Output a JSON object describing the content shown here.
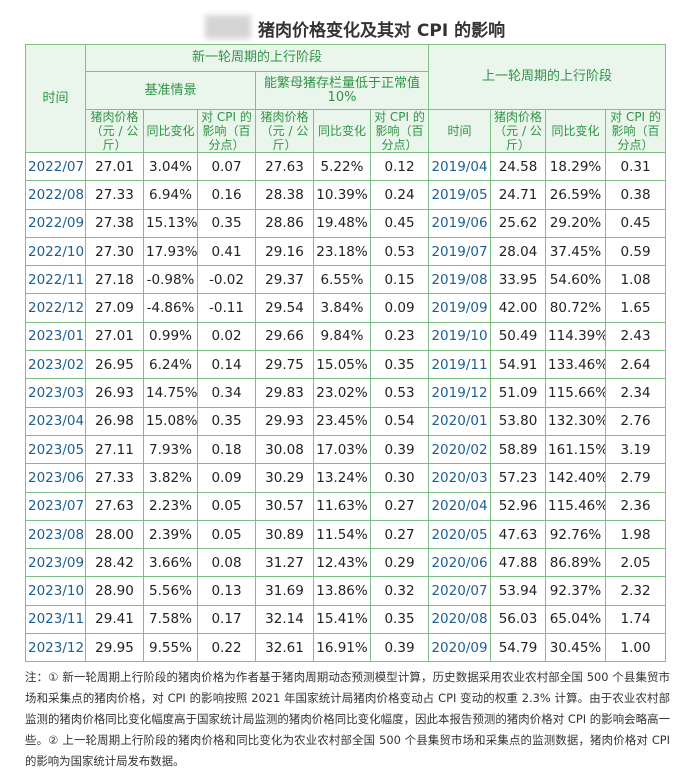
{
  "title": "猪肉价格变化及其对 CPI 的影响",
  "table": {
    "header": {
      "time": "时间",
      "new_cycle": "新一轮周期的上行阶段",
      "old_cycle": "上一轮周期的上行阶段",
      "baseline": "基准情景",
      "low_sow": "能繁母猪存栏量低于正常值 10%",
      "columns": [
        "猪肉价格（元 / 公斤）",
        "同比变化",
        "对 CPI 的影响（百分点）",
        "猪肉价格（元 / 公斤）",
        "同比变化",
        "对 CPI 的影响（百分点）",
        "时间",
        "猪肉价格（元 / 公斤）",
        "同比变化",
        "对 CPI 的影响（百分点）"
      ]
    },
    "rows": [
      [
        "2022/07",
        "27.01",
        "3.04%",
        "0.07",
        "27.63",
        "5.22%",
        "0.12",
        "2019/04",
        "24.58",
        "18.29%",
        "0.31"
      ],
      [
        "2022/08",
        "27.33",
        "6.94%",
        "0.16",
        "28.38",
        "10.39%",
        "0.24",
        "2019/05",
        "24.71",
        "26.59%",
        "0.38"
      ],
      [
        "2022/09",
        "27.38",
        "15.13%",
        "0.35",
        "28.86",
        "19.48%",
        "0.45",
        "2019/06",
        "25.62",
        "29.20%",
        "0.45"
      ],
      [
        "2022/10",
        "27.30",
        "17.93%",
        "0.41",
        "29.16",
        "23.18%",
        "0.53",
        "2019/07",
        "28.04",
        "37.45%",
        "0.59"
      ],
      [
        "2022/11",
        "27.18",
        "-0.98%",
        "-0.02",
        "29.37",
        "6.55%",
        "0.15",
        "2019/08",
        "33.95",
        "54.60%",
        "1.08"
      ],
      [
        "2022/12",
        "27.09",
        "-4.86%",
        "-0.11",
        "29.54",
        "3.84%",
        "0.09",
        "2019/09",
        "42.00",
        "80.72%",
        "1.65"
      ],
      [
        "2023/01",
        "27.01",
        "0.99%",
        "0.02",
        "29.66",
        "9.84%",
        "0.23",
        "2019/10",
        "50.49",
        "114.39%",
        "2.43"
      ],
      [
        "2023/02",
        "26.95",
        "6.24%",
        "0.14",
        "29.75",
        "15.05%",
        "0.35",
        "2019/11",
        "54.91",
        "133.46%",
        "2.64"
      ],
      [
        "2023/03",
        "26.93",
        "14.75%",
        "0.34",
        "29.83",
        "23.02%",
        "0.53",
        "2019/12",
        "51.09",
        "115.66%",
        "2.34"
      ],
      [
        "2023/04",
        "26.98",
        "15.08%",
        "0.35",
        "29.93",
        "23.45%",
        "0.54",
        "2020/01",
        "53.80",
        "132.30%",
        "2.76"
      ],
      [
        "2023/05",
        "27.11",
        "7.93%",
        "0.18",
        "30.08",
        "17.03%",
        "0.39",
        "2020/02",
        "58.89",
        "161.15%",
        "3.19"
      ],
      [
        "2023/06",
        "27.33",
        "3.82%",
        "0.09",
        "30.29",
        "13.24%",
        "0.30",
        "2020/03",
        "57.23",
        "142.40%",
        "2.79"
      ],
      [
        "2023/07",
        "27.63",
        "2.23%",
        "0.05",
        "30.57",
        "11.63%",
        "0.27",
        "2020/04",
        "52.96",
        "115.46%",
        "2.36"
      ],
      [
        "2023/08",
        "28.00",
        "2.39%",
        "0.05",
        "30.89",
        "11.54%",
        "0.27",
        "2020/05",
        "47.63",
        "92.76%",
        "1.98"
      ],
      [
        "2023/09",
        "28.42",
        "3.66%",
        "0.08",
        "31.27",
        "12.43%",
        "0.29",
        "2020/06",
        "47.88",
        "86.89%",
        "2.05"
      ],
      [
        "2023/10",
        "28.90",
        "5.56%",
        "0.13",
        "31.69",
        "13.86%",
        "0.32",
        "2020/07",
        "53.94",
        "92.37%",
        "2.32"
      ],
      [
        "2023/11",
        "29.41",
        "7.58%",
        "0.17",
        "32.14",
        "15.41%",
        "0.35",
        "2020/08",
        "56.03",
        "65.04%",
        "1.74"
      ],
      [
        "2023/12",
        "29.95",
        "9.55%",
        "0.22",
        "32.61",
        "16.91%",
        "0.39",
        "2020/09",
        "54.79",
        "30.45%",
        "1.00"
      ]
    ]
  },
  "note": "注：① 新一轮周期上行阶段的猪肉价格为作者基于猪肉周期动态预测模型计算，历史数据采用农业农村部全国 500 个县集贸市场和采集点的猪肉价格，对 CPI 的影响按照 2021 年国家统计局猪肉价格变动占 CPI 变动的权重 2.3% 计算。由于农业农村部监测的猪肉价格同比变化幅度高于国家统计局监测的猪肉价格同比变化幅度，因此本报告预测的猪肉价格对 CPI 的影响会略高一些。② 上一轮周期上行阶段的猪肉价格和同比变化为农业农村部全国 500 个县集贸市场和采集点的监测数据，猪肉价格对 CPI 的影响为国家统计局发布数据。"
}
